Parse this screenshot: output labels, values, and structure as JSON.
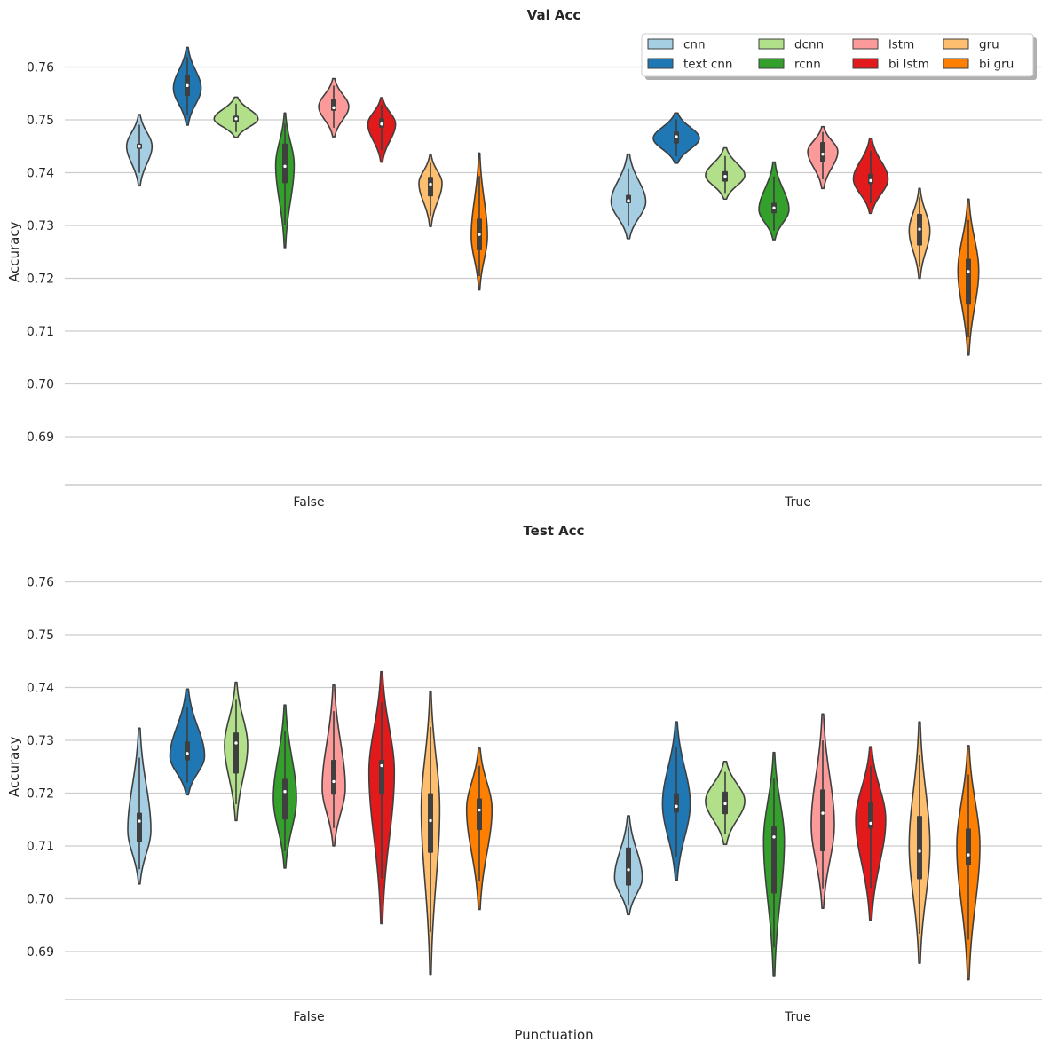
{
  "chart_data": [
    {
      "type": "violin",
      "title": "Val Acc",
      "xlabel": "",
      "ylabel": "Accuracy",
      "yticks": [
        0.69,
        0.7,
        0.71,
        0.72,
        0.73,
        0.74,
        0.75,
        0.76
      ],
      "ylim": [
        0.681,
        0.767
      ],
      "grid": true,
      "categories": [
        "False",
        "True"
      ],
      "legend": {
        "placement": "top-right",
        "columns": 4
      },
      "series": [
        {
          "name": "cnn",
          "color": "#a6cee3",
          "groups": [
            {
              "min": 0.7375,
              "q1": 0.7445,
              "median": 0.745,
              "q3": 0.7455,
              "max": 0.751,
              "peak": 0.745,
              "width": 0.55
            },
            {
              "min": 0.7275,
              "q1": 0.7342,
              "median": 0.7347,
              "q3": 0.7358,
              "max": 0.7435,
              "peak": 0.7345,
              "width": 0.75
            }
          ]
        },
        {
          "name": "text cnn",
          "color": "#1f78b4",
          "groups": [
            {
              "min": 0.749,
              "q1": 0.7545,
              "median": 0.7565,
              "q3": 0.7585,
              "max": 0.7637,
              "peak": 0.756,
              "width": 0.6
            },
            {
              "min": 0.7418,
              "q1": 0.7455,
              "median": 0.7468,
              "q3": 0.7478,
              "max": 0.7513,
              "peak": 0.7465,
              "width": 1.0
            }
          ]
        },
        {
          "name": "dcnn",
          "color": "#b2df8a",
          "groups": [
            {
              "min": 0.7467,
              "q1": 0.7495,
              "median": 0.7502,
              "q3": 0.7508,
              "max": 0.7543,
              "peak": 0.7502,
              "width": 0.95
            },
            {
              "min": 0.735,
              "q1": 0.7383,
              "median": 0.7393,
              "q3": 0.7403,
              "max": 0.7447,
              "peak": 0.7395,
              "width": 0.85
            }
          ]
        },
        {
          "name": "rcnn",
          "color": "#33a02c",
          "groups": [
            {
              "min": 0.7258,
              "q1": 0.738,
              "median": 0.7412,
              "q3": 0.7455,
              "max": 0.7513,
              "peak": 0.7415,
              "width": 0.4
            },
            {
              "min": 0.7273,
              "q1": 0.7323,
              "median": 0.7333,
              "q3": 0.7343,
              "max": 0.742,
              "peak": 0.733,
              "width": 0.65
            }
          ]
        },
        {
          "name": "lstm",
          "color": "#fb9a99",
          "groups": [
            {
              "min": 0.7468,
              "q1": 0.7517,
              "median": 0.7523,
              "q3": 0.754,
              "max": 0.7578,
              "peak": 0.7525,
              "width": 0.65
            },
            {
              "min": 0.737,
              "q1": 0.742,
              "median": 0.7435,
              "q3": 0.7458,
              "max": 0.7487,
              "peak": 0.744,
              "width": 0.65
            }
          ]
        },
        {
          "name": "bi lstm",
          "color": "#e31a1c",
          "groups": [
            {
              "min": 0.742,
              "q1": 0.7485,
              "median": 0.7492,
              "q3": 0.7503,
              "max": 0.7542,
              "peak": 0.7492,
              "width": 0.6
            },
            {
              "min": 0.7323,
              "q1": 0.7378,
              "median": 0.7385,
              "q3": 0.7398,
              "max": 0.7465,
              "peak": 0.7388,
              "width": 0.75
            }
          ]
        },
        {
          "name": "gru",
          "color": "#fdbf6f",
          "groups": [
            {
              "min": 0.7298,
              "q1": 0.7355,
              "median": 0.7378,
              "q3": 0.7392,
              "max": 0.7433,
              "peak": 0.738,
              "width": 0.5
            },
            {
              "min": 0.72,
              "q1": 0.7262,
              "median": 0.7293,
              "q3": 0.7322,
              "max": 0.737,
              "peak": 0.729,
              "width": 0.45
            }
          ]
        },
        {
          "name": "bi gru",
          "color": "#ff7f00",
          "groups": [
            {
              "min": 0.7178,
              "q1": 0.7253,
              "median": 0.7283,
              "q3": 0.7313,
              "max": 0.7437,
              "peak": 0.728,
              "width": 0.35
            },
            {
              "min": 0.7055,
              "q1": 0.715,
              "median": 0.7213,
              "q3": 0.7237,
              "max": 0.735,
              "peak": 0.7215,
              "width": 0.45
            }
          ]
        }
      ]
    },
    {
      "type": "violin",
      "title": "Test Acc",
      "xlabel": "Punctuation",
      "ylabel": "Accuracy",
      "yticks": [
        0.69,
        0.7,
        0.71,
        0.72,
        0.73,
        0.74,
        0.75,
        0.76
      ],
      "ylim": [
        0.681,
        0.767
      ],
      "grid": true,
      "categories": [
        "False",
        "True"
      ],
      "series": [
        {
          "name": "cnn",
          "color": "#a6cee3",
          "groups": [
            {
              "min": 0.7028,
              "q1": 0.7108,
              "median": 0.7147,
              "q3": 0.7163,
              "max": 0.7323,
              "peak": 0.713,
              "width": 0.5
            },
            {
              "min": 0.697,
              "q1": 0.7025,
              "median": 0.7055,
              "q3": 0.7097,
              "max": 0.7157,
              "peak": 0.704,
              "width": 0.6
            }
          ]
        },
        {
          "name": "text cnn",
          "color": "#1f78b4",
          "groups": [
            {
              "min": 0.7197,
              "q1": 0.7262,
              "median": 0.7275,
              "q3": 0.7298,
              "max": 0.7397,
              "peak": 0.727,
              "width": 0.75
            },
            {
              "min": 0.7035,
              "q1": 0.7163,
              "median": 0.7175,
              "q3": 0.72,
              "max": 0.7335,
              "peak": 0.718,
              "width": 0.6
            }
          ]
        },
        {
          "name": "dcnn",
          "color": "#b2df8a",
          "groups": [
            {
              "min": 0.7148,
              "q1": 0.7237,
              "median": 0.7295,
              "q3": 0.7315,
              "max": 0.741,
              "peak": 0.729,
              "width": 0.5
            },
            {
              "min": 0.7103,
              "q1": 0.716,
              "median": 0.718,
              "q3": 0.7203,
              "max": 0.726,
              "peak": 0.7185,
              "width": 0.85
            }
          ]
        },
        {
          "name": "rcnn",
          "color": "#33a02c",
          "groups": [
            {
              "min": 0.7058,
              "q1": 0.715,
              "median": 0.7203,
              "q3": 0.7227,
              "max": 0.7367,
              "peak": 0.719,
              "width": 0.5
            },
            {
              "min": 0.6853,
              "q1": 0.701,
              "median": 0.7117,
              "q3": 0.7137,
              "max": 0.7277,
              "peak": 0.711,
              "width": 0.45
            }
          ]
        },
        {
          "name": "lstm",
          "color": "#fb9a99",
          "groups": [
            {
              "min": 0.71,
              "q1": 0.7197,
              "median": 0.7222,
              "q3": 0.7263,
              "max": 0.7405,
              "peak": 0.721,
              "width": 0.5
            },
            {
              "min": 0.6982,
              "q1": 0.709,
              "median": 0.7162,
              "q3": 0.7207,
              "max": 0.735,
              "peak": 0.714,
              "width": 0.5
            }
          ]
        },
        {
          "name": "bi lstm",
          "color": "#e31a1c",
          "groups": [
            {
              "min": 0.6953,
              "q1": 0.7197,
              "median": 0.7252,
              "q3": 0.7263,
              "max": 0.743,
              "peak": 0.724,
              "width": 0.55
            },
            {
              "min": 0.696,
              "q1": 0.7133,
              "median": 0.7143,
              "q3": 0.7183,
              "max": 0.7288,
              "peak": 0.715,
              "width": 0.65
            }
          ]
        },
        {
          "name": "gru",
          "color": "#fdbf6f",
          "groups": [
            {
              "min": 0.6857,
              "q1": 0.7087,
              "median": 0.7148,
              "q3": 0.72,
              "max": 0.7393,
              "peak": 0.717,
              "width": 0.4
            },
            {
              "min": 0.6878,
              "q1": 0.7037,
              "median": 0.709,
              "q3": 0.7157,
              "max": 0.7335,
              "peak": 0.71,
              "width": 0.45
            }
          ]
        },
        {
          "name": "bi gru",
          "color": "#ff7f00",
          "groups": [
            {
              "min": 0.698,
              "q1": 0.713,
              "median": 0.7168,
              "q3": 0.719,
              "max": 0.7285,
              "peak": 0.717,
              "width": 0.55
            },
            {
              "min": 0.6847,
              "q1": 0.7063,
              "median": 0.7083,
              "q3": 0.7133,
              "max": 0.729,
              "peak": 0.71,
              "width": 0.5
            }
          ]
        }
      ]
    }
  ]
}
